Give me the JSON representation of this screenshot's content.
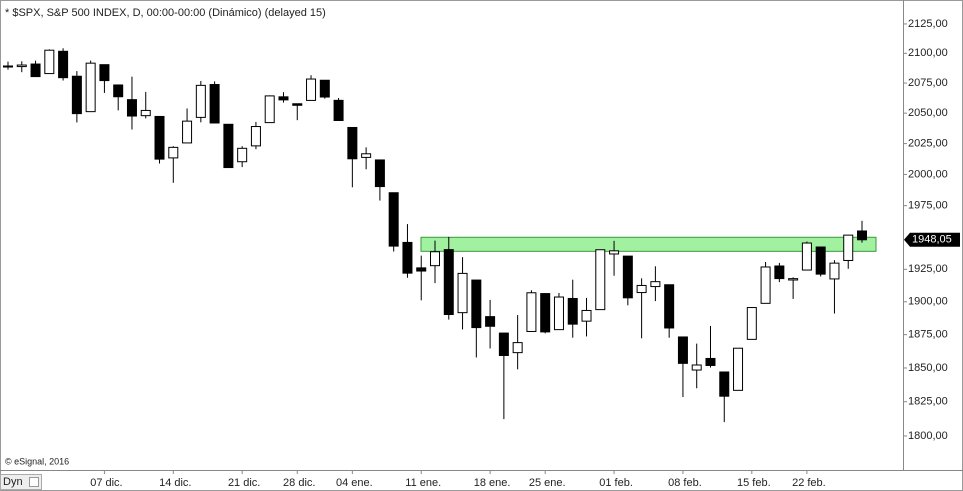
{
  "chart_data": {
    "type": "candlestick",
    "title": "* $SPX, S&P 500 INDEX, D, 00:00-00:00 (Dinámico) (delayed 15)",
    "credit": "© eSignal, 2016",
    "mode_label": "Dyn",
    "log_scale": true,
    "grid": false,
    "up_color": "#ffffff",
    "down_color": "#000000",
    "highlight": {
      "low": 1939,
      "high": 1950,
      "color": "#90ee90"
    },
    "last_price": {
      "value": 1948.05,
      "label": "1948,05"
    },
    "ylim": [
      1775.5,
      2145.6
    ],
    "yticks": [
      {
        "value": 2125,
        "label": "2125,00"
      },
      {
        "value": 2100,
        "label": "2100,00"
      },
      {
        "value": 2075,
        "label": "2075,00"
      },
      {
        "value": 2050,
        "label": "2050,00"
      },
      {
        "value": 2025,
        "label": "2025,00"
      },
      {
        "value": 2000,
        "label": "2000,00"
      },
      {
        "value": 1975,
        "label": "1975,00"
      },
      {
        "value": 1925,
        "label": "1925,00"
      },
      {
        "value": 1900,
        "label": "1900,00"
      },
      {
        "value": 1875,
        "label": "1875,00"
      },
      {
        "value": 1850,
        "label": "1850,00"
      },
      {
        "value": 1825,
        "label": "1825,00"
      },
      {
        "value": 1800,
        "label": "1800,00"
      }
    ],
    "categories": [
      null,
      null,
      null,
      null,
      null,
      null,
      null,
      "07 dic.",
      null,
      null,
      null,
      null,
      "14 dic.",
      null,
      null,
      null,
      null,
      "21 dic.",
      null,
      null,
      null,
      "28 dic.",
      null,
      null,
      null,
      "04 ene.",
      null,
      null,
      null,
      null,
      "11 ene.",
      null,
      null,
      null,
      null,
      "18 ene.",
      null,
      null,
      null,
      "25 ene.",
      null,
      null,
      null,
      null,
      "01 feb.",
      null,
      null,
      null,
      null,
      "08 feb.",
      null,
      null,
      null,
      null,
      "15 feb.",
      null,
      null,
      null,
      "22 feb.",
      null,
      null,
      null,
      null
    ],
    "open": [
      2089.3,
      2088.82,
      2090.95,
      2082.93,
      2101.71,
      2080.71,
      2051.24,
      2090.42,
      2073.39,
      2061.17,
      2047.93,
      2047.27,
      2013.37,
      2025.55,
      2046.5,
      2073.76,
      2040.81,
      2010.27,
      2023.15,
      2042.2,
      2063.52,
      2057.77,
      2060.54,
      2077.34,
      2060.59,
      2038.2,
      2013.78,
      2011.71,
      1985.32,
      1945.97,
      1926.12,
      1927.83,
      1940.34,
      1891.68,
      1916.68,
      1888.66,
      1876.18,
      1861.46,
      1877.4,
      1906.28,
      1878.79,
      1902.52,
      1885.22,
      1894.0,
      1936.94,
      1935.26,
      1907.07,
      1911.67,
      1913.07,
      1873.25,
      1848.46,
      1857.1,
      1847.0,
      1833.4,
      1871.44,
      1898.8,
      1927.57,
      1916.74,
      1924.44,
      1942.38,
      1917.56,
      1931.87,
      1954.95
    ],
    "high": [
      2093.0,
      2093.29,
      2093.81,
      2103.37,
      2104.27,
      2085.0,
      2093.84,
      2090.42,
      2073.85,
      2080.33,
      2067.65,
      2047.27,
      2022.92,
      2053.87,
      2076.72,
      2076.37,
      2040.81,
      2022.9,
      2042.74,
      2064.73,
      2067.36,
      2057.77,
      2081.56,
      2077.34,
      2062.54,
      2038.2,
      2021.94,
      2011.71,
      1985.32,
      1960.4,
      1935.65,
      1947.38,
      1950.33,
      1934.47,
      1916.68,
      1901.44,
      1876.18,
      1889.85,
      1908.85,
      1906.28,
      1906.73,
      1916.99,
      1902.96,
      1940.24,
      1947.2,
      1935.26,
      1918.01,
      1927.35,
      1913.07,
      1873.25,
      1868.25,
      1881.6,
      1847.0,
      1864.78,
      1895.77,
      1930.68,
      1930.0,
      1918.78,
      1946.7,
      1942.38,
      1932.08,
      1951.83,
      1962.96
    ],
    "low": [
      2086.3,
      2084.13,
      2080.41,
      2082.93,
      2077.11,
      2042.35,
      2051.24,
      2066.78,
      2052.32,
      2036.53,
      2045.67,
      2008.8,
      1993.26,
      2025.55,
      2042.43,
      2041.66,
      2005.33,
      2005.93,
      2020.49,
      2042.2,
      2058.73,
      2044.2,
      2060.54,
      2061.97,
      2043.62,
      1989.68,
      2004.17,
      1979.05,
      1938.83,
      1918.46,
      1901.1,
      1914.35,
      1886.41,
      1878.93,
      1857.83,
      1864.6,
      1812.29,
      1848.98,
      1877.4,
      1875.97,
      1878.79,
      1872.7,
      1873.65,
      1894.0,
      1920.03,
      1897.29,
      1872.23,
      1900.52,
      1872.65,
      1828.46,
      1834.94,
      1850.32,
      1810.1,
      1833.4,
      1871.44,
      1898.8,
      1915.09,
      1902.17,
      1924.44,
      1919.44,
      1891.0,
      1925.41,
      1945.78
    ],
    "close": [
      2088.87,
      2090.11,
      2080.41,
      2102.63,
      2079.51,
      2049.62,
      2091.69,
      2077.07,
      2063.59,
      2047.62,
      2052.23,
      2012.37,
      2021.94,
      2043.41,
      2073.07,
      2041.89,
      2005.55,
      2021.15,
      2038.97,
      2064.29,
      2060.99,
      2056.5,
      2078.36,
      2063.36,
      2043.94,
      2012.66,
      2016.71,
      1990.26,
      1943.09,
      1922.03,
      1923.67,
      1938.68,
      1890.28,
      1921.84,
      1880.33,
      1881.33,
      1859.33,
      1868.99,
      1906.9,
      1877.08,
      1903.63,
      1882.95,
      1893.36,
      1940.24,
      1939.38,
      1903.03,
      1912.53,
      1915.45,
      1880.05,
      1853.44,
      1852.21,
      1851.86,
      1829.08,
      1864.78,
      1895.58,
      1926.82,
      1917.83,
      1917.78,
      1945.5,
      1921.27,
      1929.8,
      1951.7,
      1948.05
    ]
  }
}
